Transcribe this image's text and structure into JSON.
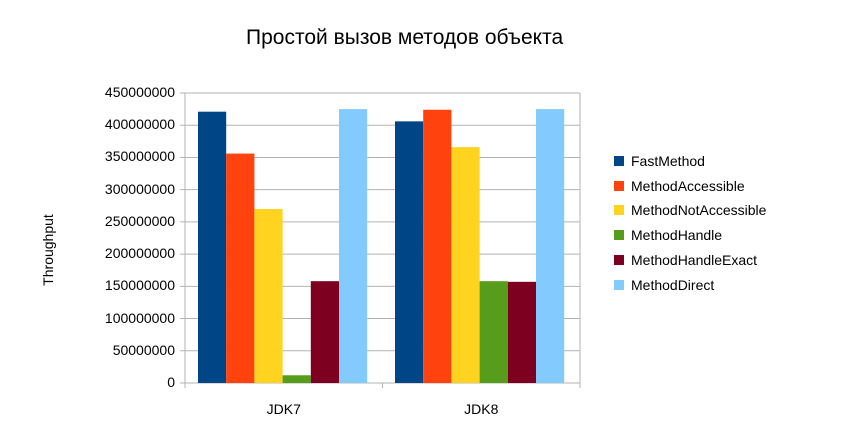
{
  "chart_data": {
    "type": "bar",
    "title": "Простой вызов методов объекта",
    "xlabel": "",
    "ylabel": "Throughput",
    "ylim": [
      0,
      450000000
    ],
    "yticks": [
      "0",
      "50000000",
      "100000000",
      "150000000",
      "200000000",
      "250000000",
      "300000000",
      "350000000",
      "400000000",
      "450000000"
    ],
    "categories": [
      "JDK7",
      "JDK8"
    ],
    "grid": true,
    "legend_position": "right",
    "series": [
      {
        "name": "FastMethod",
        "color": "#004586",
        "values": [
          421000000,
          406000000
        ]
      },
      {
        "name": "MethodAccessible",
        "color": "#ff420e",
        "values": [
          356000000,
          424000000
        ]
      },
      {
        "name": "MethodNotAccessible",
        "color": "#ffd320",
        "values": [
          270000000,
          366000000
        ]
      },
      {
        "name": "MethodHandle",
        "color": "#579d1c",
        "values": [
          12000000,
          158000000
        ]
      },
      {
        "name": "MethodHandleExact",
        "color": "#7e0021",
        "values": [
          158000000,
          157000000
        ]
      },
      {
        "name": "MethodDirect",
        "color": "#83caff",
        "values": [
          425000000,
          425000000
        ]
      }
    ]
  }
}
